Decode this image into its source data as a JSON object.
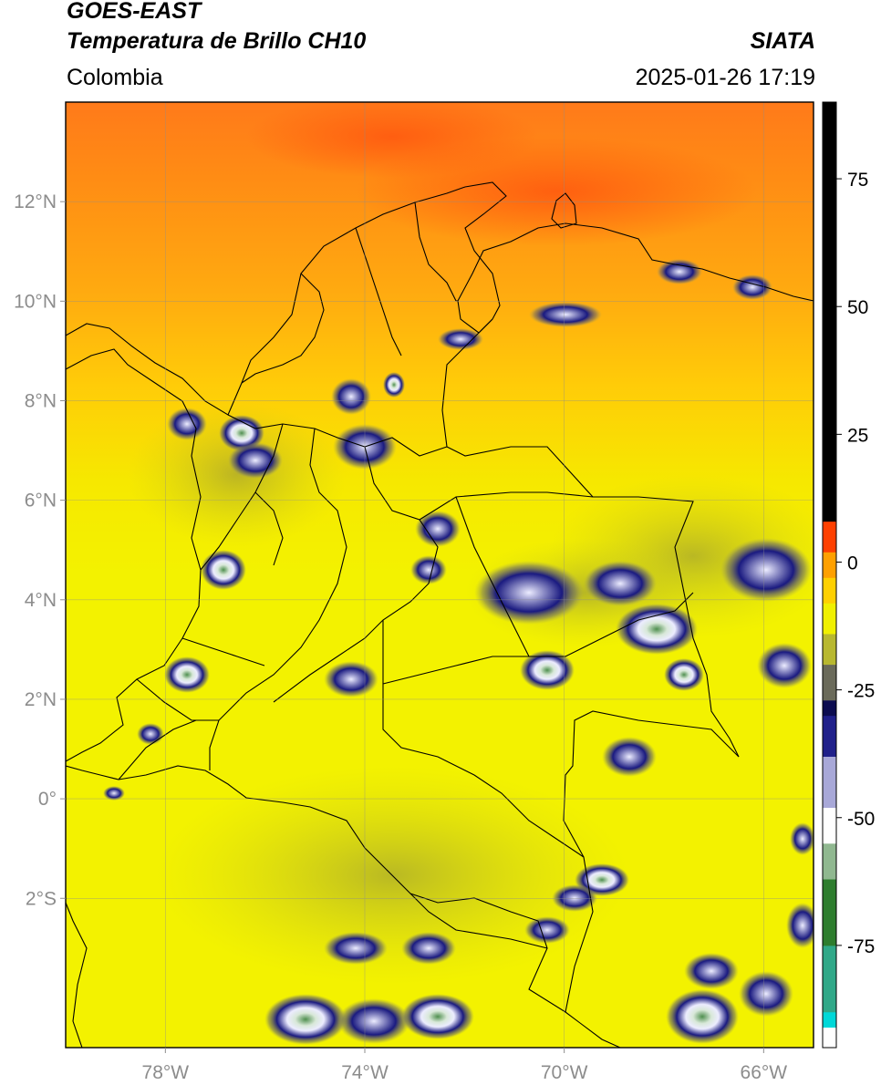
{
  "header": {
    "title_line1": "GOES-EAST",
    "title_line2": "Temperatura de Brillo CH10",
    "brand": "SIATA",
    "region": "Colombia",
    "timestamp": "2025-01-26 17:19"
  },
  "map": {
    "lon_range": [
      -80,
      -65
    ],
    "lat_range": [
      -5,
      14
    ],
    "lon_ticks": [
      {
        "value": -78,
        "label": "78°W"
      },
      {
        "value": -74,
        "label": "74°W"
      },
      {
        "value": -70,
        "label": "70°W"
      },
      {
        "value": -66,
        "label": "66°W"
      }
    ],
    "lat_ticks": [
      {
        "value": 12,
        "label": "12°N"
      },
      {
        "value": 10,
        "label": "10°N"
      },
      {
        "value": 8,
        "label": "8°N"
      },
      {
        "value": 6,
        "label": "6°N"
      },
      {
        "value": 4,
        "label": "4°N"
      },
      {
        "value": 2,
        "label": "2°N"
      },
      {
        "value": 0,
        "label": "0°"
      },
      {
        "value": -2,
        "label": "2°S"
      }
    ],
    "colors": {
      "warm_sea": "#ff7a1a",
      "orange": "#ffaa10",
      "yellow": "#f3f200",
      "cloud_blue": "#1a1a80",
      "cloud_white": "#ececff",
      "cloud_green": "#4f8f4f"
    }
  },
  "colorbar": {
    "ticks": [
      {
        "value": 75,
        "label": "75"
      },
      {
        "value": 50,
        "label": "50"
      },
      {
        "value": 25,
        "label": "25"
      },
      {
        "value": 0,
        "label": "0"
      },
      {
        "value": -25,
        "label": "-25"
      },
      {
        "value": -50,
        "label": "-50"
      },
      {
        "value": -75,
        "label": "-75"
      }
    ],
    "range": [
      -95,
      90
    ],
    "segments": [
      {
        "from": -95,
        "to": -91,
        "color": "#ffffff"
      },
      {
        "from": -91,
        "to": -88,
        "color": "#00d8d8"
      },
      {
        "from": -88,
        "to": -75,
        "color": "#30a888"
      },
      {
        "from": -75,
        "to": -62,
        "color": "#2e7d2e"
      },
      {
        "from": -62,
        "to": -55,
        "color": "#90b890"
      },
      {
        "from": -55,
        "to": -48,
        "color": "#ffffff"
      },
      {
        "from": -48,
        "to": -38,
        "color": "#a8a8d8"
      },
      {
        "from": -38,
        "to": -30,
        "color": "#20208a"
      },
      {
        "from": -30,
        "to": -27,
        "color": "#0c0c50"
      },
      {
        "from": -27,
        "to": -20,
        "color": "#6a6a5a"
      },
      {
        "from": -20,
        "to": -14,
        "color": "#b8b830"
      },
      {
        "from": -14,
        "to": -8,
        "color": "#f0f000"
      },
      {
        "from": -8,
        "to": -3,
        "color": "#ffd000"
      },
      {
        "from": -3,
        "to": 2,
        "color": "#ffa000"
      },
      {
        "from": 2,
        "to": 8,
        "color": "#ff4000"
      },
      {
        "from": 8,
        "to": 90,
        "color": "#000000"
      }
    ]
  }
}
